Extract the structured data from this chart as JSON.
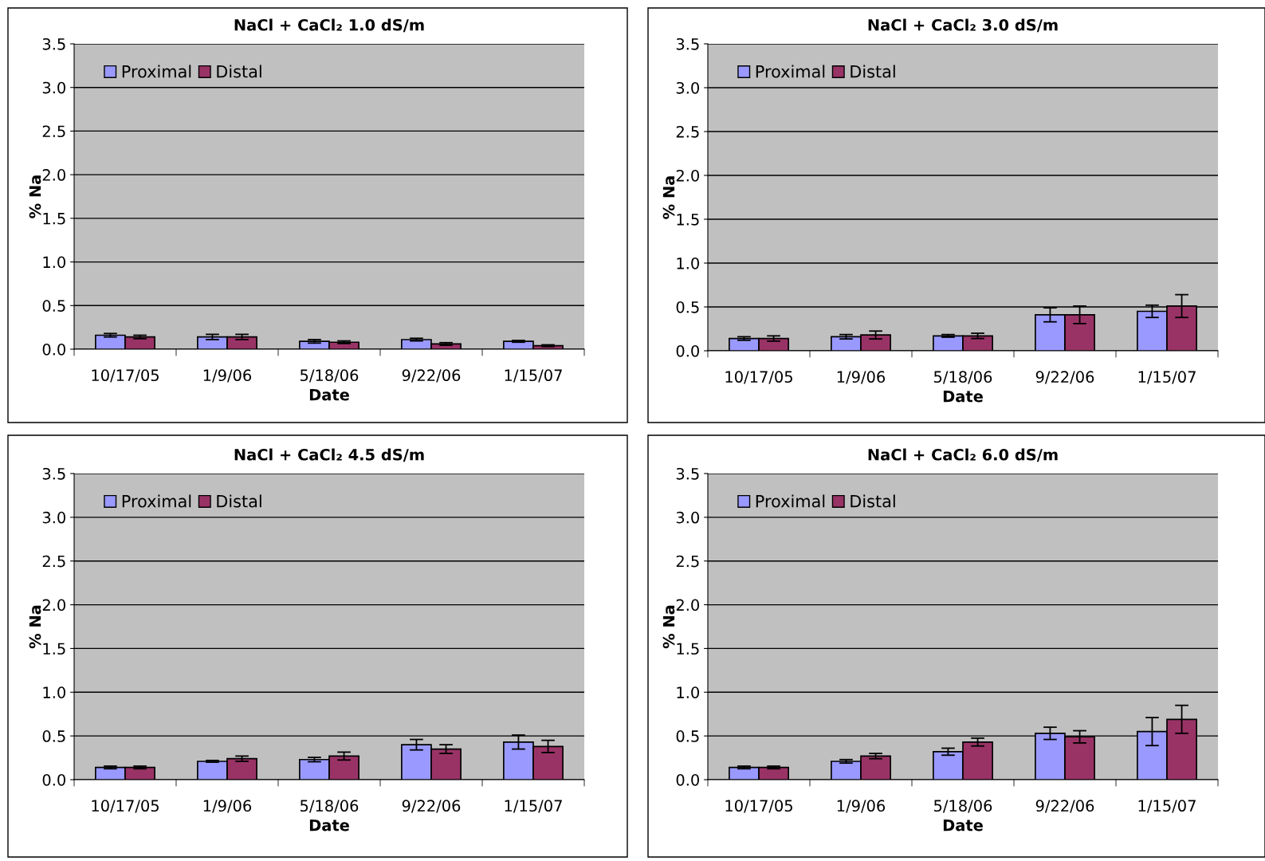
{
  "chart_data": [
    {
      "type": "bar",
      "title": "NaCl + CaCl₂ 1.0 dS/m",
      "xlabel": "Date",
      "ylabel": "% Na",
      "categories": [
        "10/17/05",
        "1/9/06",
        "5/18/06",
        "9/22/06",
        "1/15/07"
      ],
      "ylim": [
        0,
        3.5
      ],
      "yticks": [
        {
          "value": 0,
          "label": "0.0"
        },
        {
          "value": 0.5,
          "label": "0.5"
        },
        {
          "value": 1,
          "label": "1.0"
        },
        {
          "value": 1.5,
          "label": "1.5"
        },
        {
          "value": 2,
          "label": "2.0"
        },
        {
          "value": 2.5,
          "label": "2.5"
        },
        {
          "value": 3,
          "label": "3.0"
        },
        {
          "value": 3.5,
          "label": "3.5"
        }
      ],
      "grid": "y",
      "legend": "top left",
      "series": [
        {
          "name": "Proximal",
          "color": "#9999ff",
          "values": [
            0.16,
            0.14,
            0.09,
            0.11,
            0.09
          ],
          "errors": [
            0.02,
            0.03,
            0.02,
            0.015,
            0.01
          ]
        },
        {
          "name": "Distal",
          "color": "#993366",
          "values": [
            0.14,
            0.14,
            0.08,
            0.06,
            0.04
          ],
          "errors": [
            0.02,
            0.03,
            0.015,
            0.015,
            0.01
          ]
        }
      ]
    },
    {
      "type": "bar",
      "title": "NaCl + CaCl₂ 3.0 dS/m",
      "xlabel": "Date",
      "ylabel": "% Na",
      "categories": [
        "10/17/05",
        "1/9/06",
        "5/18/06",
        "9/22/06",
        "1/15/07"
      ],
      "ylim": [
        0,
        3.5
      ],
      "yticks": [
        {
          "value": 0,
          "label": "0.0"
        },
        {
          "value": 0.5,
          "label": "0.5"
        },
        {
          "value": 1,
          "label": "1.0"
        },
        {
          "value": 1.5,
          "label": "1.5"
        },
        {
          "value": 2,
          "label": "2.0"
        },
        {
          "value": 2.5,
          "label": "2.5"
        },
        {
          "value": 3,
          "label": "3.0"
        },
        {
          "value": 3.5,
          "label": "3.5"
        }
      ],
      "grid": "y",
      "legend": "top left",
      "series": [
        {
          "name": "Proximal",
          "color": "#9999ff",
          "values": [
            0.14,
            0.16,
            0.17,
            0.41,
            0.45
          ],
          "errors": [
            0.02,
            0.025,
            0.015,
            0.08,
            0.07
          ]
        },
        {
          "name": "Distal",
          "color": "#993366",
          "values": [
            0.14,
            0.18,
            0.17,
            0.41,
            0.51
          ],
          "errors": [
            0.03,
            0.045,
            0.03,
            0.1,
            0.13
          ]
        }
      ]
    },
    {
      "type": "bar",
      "title": "NaCl + CaCl₂ 4.5 dS/m",
      "xlabel": "Date",
      "ylabel": "% Na",
      "categories": [
        "10/17/05",
        "1/9/06",
        "5/18/06",
        "9/22/06",
        "1/15/07"
      ],
      "ylim": [
        0,
        3.5
      ],
      "yticks": [
        {
          "value": 0,
          "label": "0.0"
        },
        {
          "value": 0.5,
          "label": "0.5"
        },
        {
          "value": 1,
          "label": "1.0"
        },
        {
          "value": 1.5,
          "label": "1.5"
        },
        {
          "value": 2,
          "label": "2.0"
        },
        {
          "value": 2.5,
          "label": "2.5"
        },
        {
          "value": 3,
          "label": "3.0"
        },
        {
          "value": 3.5,
          "label": "3.5"
        }
      ],
      "grid": "y",
      "legend": "top left",
      "series": [
        {
          "name": "Proximal",
          "color": "#9999ff",
          "values": [
            0.14,
            0.21,
            0.23,
            0.4,
            0.43
          ],
          "errors": [
            0.015,
            0.01,
            0.025,
            0.06,
            0.08
          ]
        },
        {
          "name": "Distal",
          "color": "#993366",
          "values": [
            0.14,
            0.24,
            0.27,
            0.35,
            0.38
          ],
          "errors": [
            0.015,
            0.03,
            0.045,
            0.05,
            0.07
          ]
        }
      ]
    },
    {
      "type": "bar",
      "title": "NaCl + CaCl₂ 6.0 dS/m",
      "xlabel": "Date",
      "ylabel": "% Na",
      "categories": [
        "10/17/05",
        "1/9/06",
        "5/18/06",
        "9/22/06",
        "1/15/07"
      ],
      "ylim": [
        0,
        3.5
      ],
      "yticks": [
        {
          "value": 0,
          "label": "0.0"
        },
        {
          "value": 0.5,
          "label": "0.5"
        },
        {
          "value": 1,
          "label": "1.0"
        },
        {
          "value": 1.5,
          "label": "1.5"
        },
        {
          "value": 2,
          "label": "2.0"
        },
        {
          "value": 2.5,
          "label": "2.5"
        },
        {
          "value": 3,
          "label": "3.0"
        },
        {
          "value": 3.5,
          "label": "3.5"
        }
      ],
      "grid": "y",
      "legend": "top left",
      "series": [
        {
          "name": "Proximal",
          "color": "#9999ff",
          "values": [
            0.14,
            0.21,
            0.32,
            0.53,
            0.55
          ],
          "errors": [
            0.015,
            0.02,
            0.04,
            0.07,
            0.16
          ]
        },
        {
          "name": "Distal",
          "color": "#993366",
          "values": [
            0.14,
            0.27,
            0.43,
            0.49,
            0.69
          ],
          "errors": [
            0.015,
            0.03,
            0.045,
            0.07,
            0.16
          ]
        }
      ]
    }
  ]
}
